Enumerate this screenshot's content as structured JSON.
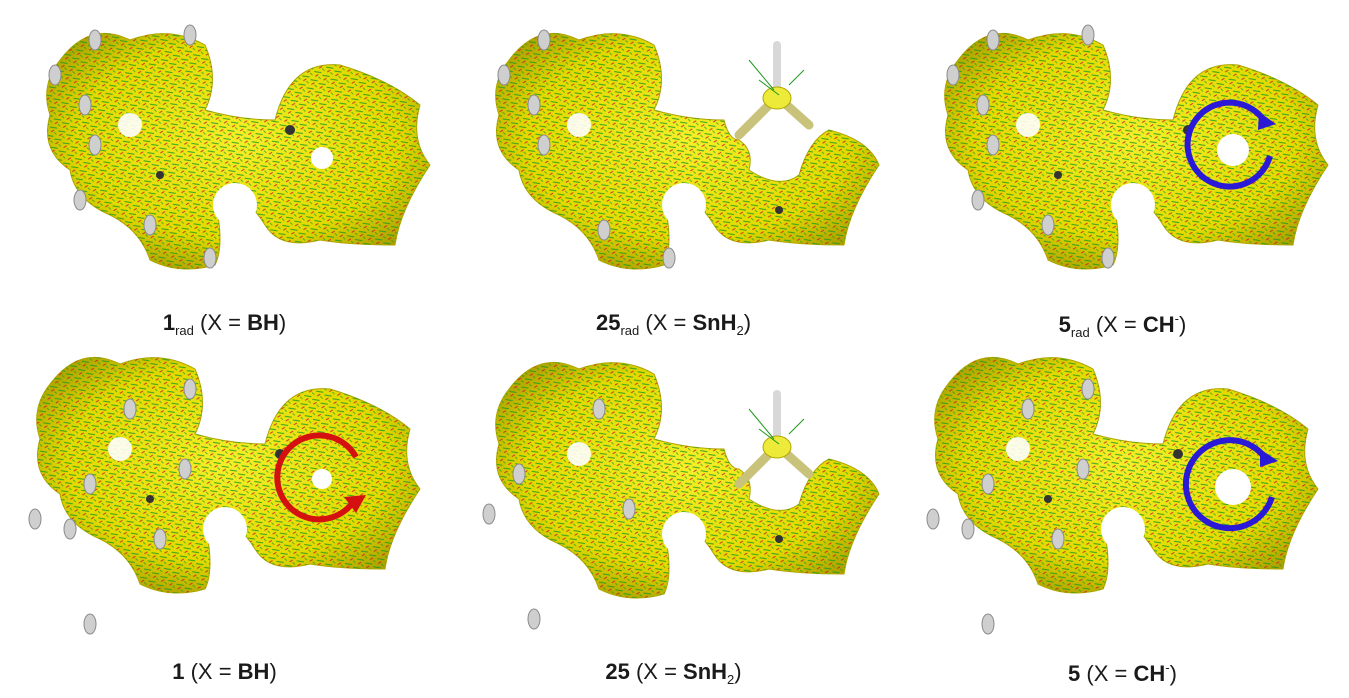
{
  "colors": {
    "surface": "#e9e400",
    "surface_shadow": "#b8ad00",
    "vector_green": "#1e9a1e",
    "vector_red": "#c81e1e",
    "hydrogen": "#c8c8c8",
    "bridge_stick": "#c9c27a",
    "diatropic_arrow": "#d41010",
    "paratropic_arrow": "#2a1ad8"
  },
  "panels": [
    {
      "id": "1rad",
      "bold": "1",
      "sub": "rad",
      "open": " (X = ",
      "x_bold": "BH",
      "x_sub": "",
      "x_sup": "",
      "close": ")",
      "bridge": false,
      "ring_current": "none",
      "hole": "small"
    },
    {
      "id": "25rad",
      "bold": "25",
      "sub": "rad",
      "open": " (X = ",
      "x_bold": "SnH",
      "x_sub": "2",
      "x_sup": "",
      "close": ")",
      "bridge": true,
      "ring_current": "none",
      "hole": "none"
    },
    {
      "id": "5rad",
      "bold": "5",
      "sub": "rad",
      "open": " (X = ",
      "x_bold": "CH",
      "x_sub": "",
      "x_sup": "-",
      "close": ")",
      "bridge": false,
      "ring_current": "paratropic",
      "hole": "large"
    },
    {
      "id": "1",
      "bold": "1",
      "sub": "",
      "open": " (X = ",
      "x_bold": "BH",
      "x_sub": "",
      "x_sup": "",
      "close": ")",
      "bridge": false,
      "ring_current": "diatropic",
      "hole": "small"
    },
    {
      "id": "25",
      "bold": "25",
      "sub": "",
      "open": " (X = ",
      "x_bold": "SnH",
      "x_sub": "2",
      "x_sup": "",
      "close": ")",
      "bridge": true,
      "ring_current": "none",
      "hole": "none"
    },
    {
      "id": "5",
      "bold": "5",
      "sub": "",
      "open": " (X = ",
      "x_bold": "CH",
      "x_sub": "",
      "x_sup": "-",
      "close": ")",
      "bridge": false,
      "ring_current": "paratropic",
      "hole": "large"
    }
  ]
}
